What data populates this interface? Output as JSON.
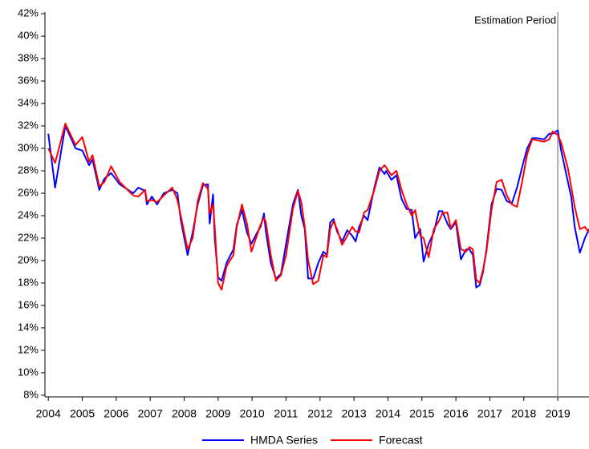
{
  "chart_data": {
    "type": "line",
    "x": [
      2004.0,
      2004.2,
      2004.5,
      2004.8,
      2005.0,
      2005.2,
      2005.3,
      2005.5,
      2005.65,
      2005.85,
      2006.1,
      2006.5,
      2006.65,
      2006.85,
      2006.9,
      2007.05,
      2007.2,
      2007.4,
      2007.65,
      2007.8,
      2007.9,
      2008.1,
      2008.25,
      2008.4,
      2008.55,
      2008.7,
      2008.75,
      2008.85,
      2008.9,
      2009.0,
      2009.1,
      2009.25,
      2009.45,
      2009.55,
      2009.7,
      2009.85,
      2009.98,
      2010.15,
      2010.25,
      2010.35,
      2010.4,
      2010.55,
      2010.7,
      2010.85,
      2011.0,
      2011.2,
      2011.35,
      2011.45,
      2011.55,
      2011.65,
      2011.8,
      2011.95,
      2012.1,
      2012.2,
      2012.3,
      2012.4,
      2012.5,
      2012.65,
      2012.8,
      2012.95,
      2013.05,
      2013.15,
      2013.3,
      2013.4,
      2013.6,
      2013.75,
      2013.9,
      2013.95,
      2014.1,
      2014.25,
      2014.4,
      2014.55,
      2014.7,
      2014.8,
      2014.95,
      2015.05,
      2015.2,
      2015.35,
      2015.5,
      2015.6,
      2015.75,
      2015.85,
      2016.0,
      2016.15,
      2016.3,
      2016.4,
      2016.5,
      2016.6,
      2016.7,
      2016.8,
      2016.9,
      2017.05,
      2017.2,
      2017.35,
      2017.5,
      2017.65,
      2017.8,
      2017.95,
      2018.1,
      2018.25,
      2018.4,
      2018.6,
      2018.75,
      2018.85,
      2019.0,
      2019.1,
      2019.3,
      2019.4,
      2019.5,
      2019.65,
      2019.8,
      2019.92
    ],
    "series": [
      {
        "name": "HMDA Series",
        "color": "#0000ff",
        "values": [
          31.3,
          26.5,
          32,
          30,
          29.8,
          28.5,
          29,
          26.3,
          27.3,
          27.8,
          26.8,
          26,
          26.5,
          26.2,
          25,
          25.7,
          25,
          26,
          26.3,
          26,
          23.6,
          20.5,
          22.5,
          25,
          26.7,
          26.8,
          23.3,
          25.9,
          22,
          18.5,
          18.2,
          19.8,
          21,
          23.2,
          24.5,
          22.5,
          21.5,
          22.5,
          23,
          24.2,
          22.7,
          19.8,
          18.4,
          18.8,
          21.5,
          25,
          26.3,
          24,
          22.8,
          18.4,
          18.4,
          19.8,
          20.8,
          20.5,
          23.4,
          23.7,
          22.6,
          21.7,
          22.7,
          22.2,
          21.7,
          23,
          24,
          23.6,
          26.5,
          28.3,
          27.7,
          28,
          27.2,
          27.6,
          25.5,
          24.6,
          24.5,
          22,
          22.8,
          19.9,
          21.5,
          22.5,
          24.4,
          24.4,
          23.3,
          22.8,
          23.4,
          20.1,
          21,
          21,
          20.5,
          17.6,
          17.8,
          19,
          21,
          25,
          26.4,
          26.3,
          25.3,
          25.1,
          26.5,
          28.3,
          30,
          30.9,
          30.9,
          30.8,
          31.3,
          31.3,
          31.6,
          29.8,
          27,
          25.6,
          23,
          20.7,
          22,
          22.8
        ]
      },
      {
        "name": "Forecast",
        "color": "#ff0000",
        "values": [
          30,
          28.7,
          32.2,
          30.3,
          31,
          28.8,
          29.4,
          26.6,
          27,
          28.4,
          27,
          25.8,
          25.7,
          26.3,
          25.3,
          25.4,
          25.2,
          25.8,
          26.5,
          25.4,
          24,
          21,
          22,
          25.3,
          26.9,
          26.4,
          24.2,
          25,
          23,
          18,
          17.4,
          19.5,
          20.5,
          23,
          25,
          23.3,
          20.8,
          22.3,
          23.2,
          23.8,
          23.5,
          20.5,
          18.2,
          18.7,
          20.5,
          24.6,
          26.2,
          25.2,
          23,
          20,
          17.9,
          18.2,
          20.5,
          20.3,
          22.8,
          23.5,
          22.8,
          21.4,
          22.2,
          23,
          22.6,
          22.5,
          24.3,
          24.5,
          26.3,
          28,
          28.5,
          28.3,
          27.6,
          28,
          26.3,
          25,
          24,
          24.5,
          22.2,
          22,
          20.3,
          22.8,
          23.5,
          24.2,
          24.3,
          22.9,
          23.6,
          21,
          20.8,
          21.2,
          21,
          18.3,
          18,
          19.2,
          20.8,
          24.5,
          27,
          27.2,
          25.8,
          25,
          24.8,
          27,
          29.5,
          30.8,
          30.7,
          30.6,
          30.8,
          31.5,
          31.2,
          30.5,
          28.2,
          26.5,
          24.8,
          22.8,
          23,
          22.5
        ]
      }
    ],
    "xlim": [
      2003.9,
      2019.92
    ],
    "xticks": [
      2004,
      2005,
      2006,
      2007,
      2008,
      2009,
      2010,
      2011,
      2012,
      2013,
      2014,
      2015,
      2016,
      2017,
      2018,
      2019
    ],
    "ylim": [
      7.85,
      42.15
    ],
    "yticks": [
      {
        "value": 8,
        "label": "8%"
      },
      {
        "value": 10,
        "label": "10%"
      },
      {
        "value": 12,
        "label": "12%"
      },
      {
        "value": 14,
        "label": "14%"
      },
      {
        "value": 16,
        "label": "16%"
      },
      {
        "value": 18,
        "label": "18%"
      },
      {
        "value": 20,
        "label": "20%"
      },
      {
        "value": 22,
        "label": "22%"
      },
      {
        "value": 24,
        "label": "24%"
      },
      {
        "value": 26,
        "label": "26%"
      },
      {
        "value": 28,
        "label": "28%"
      },
      {
        "value": 30,
        "label": "30%"
      },
      {
        "value": 32,
        "label": "32%"
      },
      {
        "value": 34,
        "label": "34%"
      },
      {
        "value": 36,
        "label": "36%"
      },
      {
        "value": 38,
        "label": "38%"
      },
      {
        "value": 40,
        "label": "40%"
      },
      {
        "value": 42,
        "label": "42%"
      }
    ],
    "annotation": {
      "text": "Estimation Period",
      "x": 2019
    },
    "legend": "bottom"
  }
}
